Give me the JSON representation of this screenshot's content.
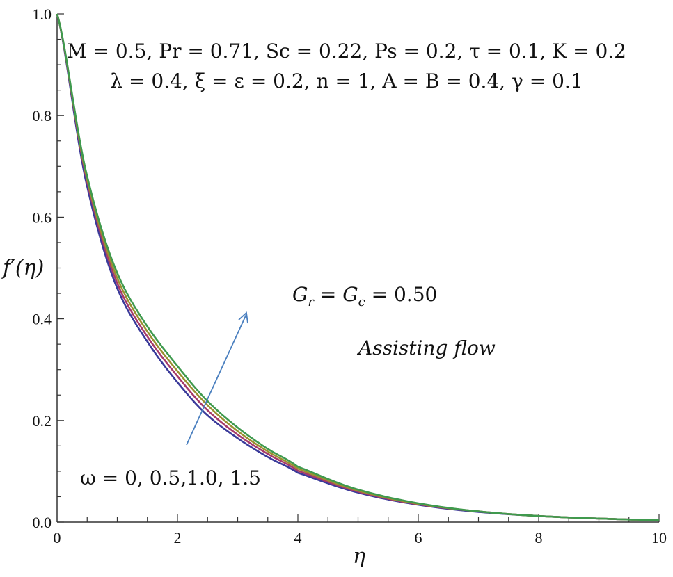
{
  "chart_data": {
    "type": "line",
    "title": "",
    "xlabel": "η",
    "ylabel": "f′(η)",
    "xlim": [
      0,
      10
    ],
    "ylim": [
      0,
      1.0
    ],
    "x_ticks": [
      "0",
      "2",
      "4",
      "6",
      "8",
      "10"
    ],
    "y_ticks": [
      "0.0",
      "0.2",
      "0.4",
      "0.6",
      "0.8",
      "1.0"
    ],
    "grid": false,
    "legend": null,
    "x": [
      0,
      0.5,
      1,
      1.5,
      2,
      2.5,
      3,
      3.5,
      4,
      5,
      6,
      7,
      8,
      9,
      10
    ],
    "series": [
      {
        "name": "ω = 0",
        "color": "#3a3a9a",
        "values": [
          1.0,
          0.66,
          0.46,
          0.355,
          0.275,
          0.21,
          0.165,
          0.128,
          0.097,
          0.058,
          0.034,
          0.02,
          0.012,
          0.007,
          0.004
        ]
      },
      {
        "name": "ω = 0.5",
        "color": "#a63a6a",
        "values": [
          1.0,
          0.67,
          0.47,
          0.365,
          0.287,
          0.22,
          0.172,
          0.134,
          0.101,
          0.06,
          0.035,
          0.021,
          0.012,
          0.007,
          0.004
        ]
      },
      {
        "name": "ω = 1.0",
        "color": "#9a9030",
        "values": [
          1.0,
          0.675,
          0.48,
          0.375,
          0.297,
          0.23,
          0.179,
          0.139,
          0.105,
          0.062,
          0.036,
          0.021,
          0.012,
          0.007,
          0.004
        ]
      },
      {
        "name": "ω = 1.5",
        "color": "#3f9a4e",
        "values": [
          1.0,
          0.68,
          0.49,
          0.385,
          0.307,
          0.238,
          0.186,
          0.144,
          0.109,
          0.064,
          0.037,
          0.021,
          0.012,
          0.007,
          0.004
        ]
      }
    ],
    "annotations": {
      "params_line1": "M = 0.5, Pr = 0.71, Sc = 0.22, Ps = 0.2, τ = 0.1, K = 0.2",
      "params_line2": "λ = 0.4,  ξ = ε = 0.2, n = 1, A = B = 0.4, γ = 0.1",
      "grashof": "Gr = Gc = 0.50",
      "flow_type": "Assisting flow",
      "omega_label": "ω = 0, 0.5,1.0, 1.5",
      "arrow_color": "#4a7fbf",
      "arrow_note": "increasing ω"
    }
  },
  "labels": {
    "x_axis": "η",
    "y_axis_f": "f",
    "y_axis_prime": "′",
    "y_axis_eta": "(η)",
    "grashof_G1": "G",
    "grashof_r": "r",
    "grashof_eq1": " = ",
    "grashof_G2": "G",
    "grashof_c": "c",
    "grashof_val": " = 0.50",
    "flow": "Assisting flow",
    "omega": "ω = 0, 0.5,1.0, 1.5"
  }
}
